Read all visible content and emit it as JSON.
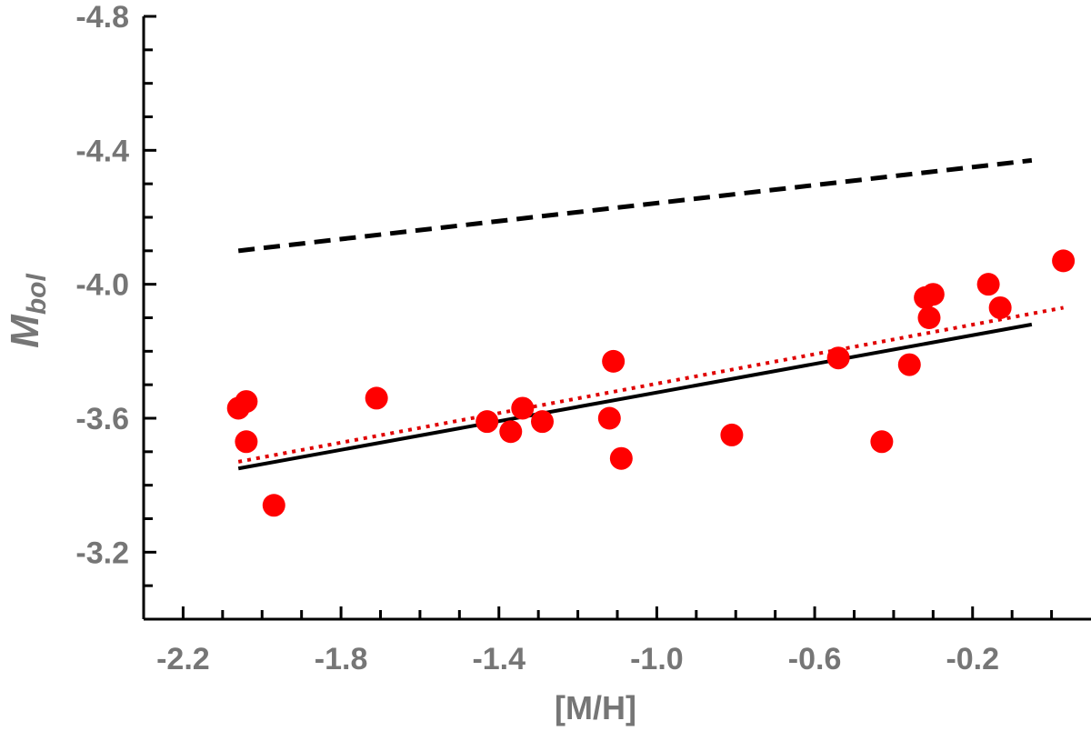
{
  "chart_data": {
    "type": "scatter",
    "xlabel": "[M/H]",
    "ylabel": {
      "main": "M",
      "sub": "bol"
    },
    "xlim": [
      -2.3,
      0.1
    ],
    "ylim": [
      -3.0,
      -4.8
    ],
    "y_inverted": true,
    "x_ticks": [
      -2.2,
      -1.8,
      -1.4,
      -1.0,
      -0.6,
      -0.2
    ],
    "x_tick_labels": [
      "-2.2",
      "-1.8",
      "-1.4",
      "-1.0",
      "-0.6",
      "-0.2"
    ],
    "x_minor_step": 0.1,
    "y_ticks": [
      -3.2,
      -3.6,
      -4.0,
      -4.4,
      -4.8
    ],
    "y_tick_labels": [
      "-3.2",
      "-3.6",
      "-4.0",
      "-4.4",
      "-4.8"
    ],
    "y_minor_step": 0.1,
    "grid": false,
    "colors": {
      "points": "#ff0000",
      "solid": "#000000",
      "dashed": "#000000",
      "dotted": "#e00000",
      "axis_text": "#767676"
    },
    "points": {
      "x": [
        -2.06,
        -2.04,
        -2.04,
        -1.97,
        -1.71,
        -1.43,
        -1.37,
        -1.34,
        -1.29,
        -1.12,
        -1.11,
        -1.09,
        -0.81,
        -0.54,
        -0.43,
        -0.36,
        -0.32,
        -0.31,
        -0.3,
        -0.16,
        -0.13,
        0.03
      ],
      "y": [
        -3.63,
        -3.65,
        -3.53,
        -3.34,
        -3.66,
        -3.59,
        -3.56,
        -3.63,
        -3.59,
        -3.6,
        -3.77,
        -3.48,
        -3.55,
        -3.78,
        -3.53,
        -3.76,
        -3.96,
        -3.9,
        -3.97,
        -4.0,
        -3.93,
        -4.07
      ]
    },
    "lines": [
      {
        "style": "solid",
        "x": [
          -2.06,
          -0.05
        ],
        "y": [
          -3.45,
          -3.88
        ]
      },
      {
        "style": "dotted",
        "x": [
          -2.06,
          0.03
        ],
        "y": [
          -3.47,
          -3.93
        ]
      },
      {
        "style": "dashed",
        "x": [
          -2.06,
          -0.05
        ],
        "y": [
          -4.1,
          -4.37
        ]
      }
    ]
  }
}
